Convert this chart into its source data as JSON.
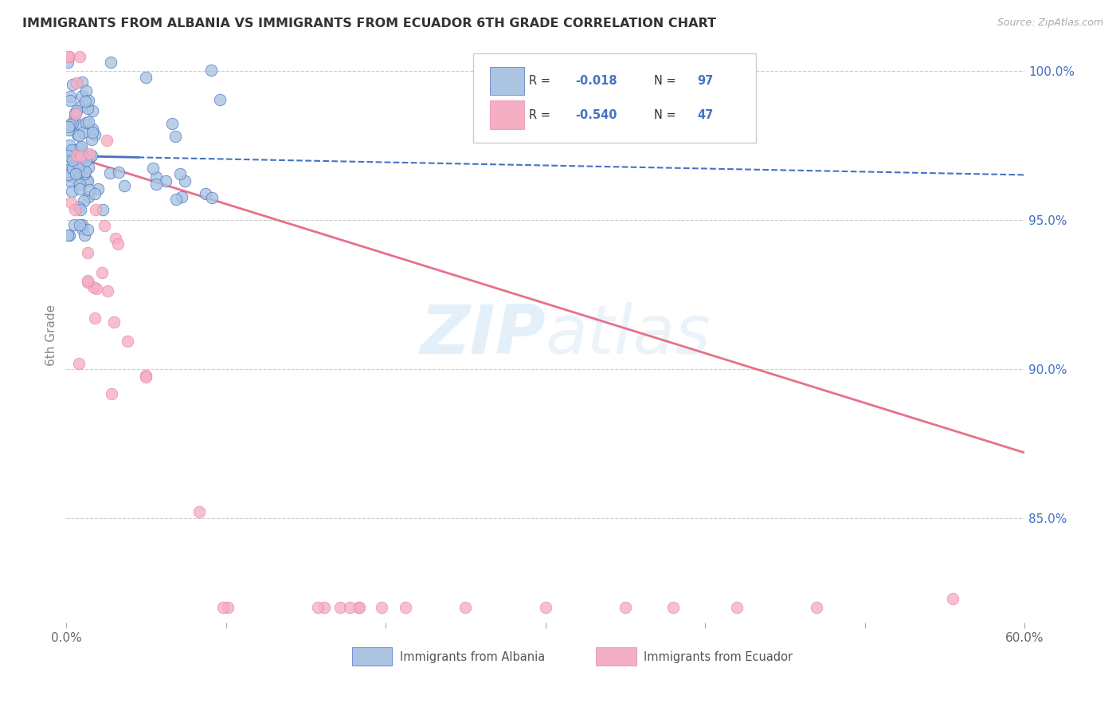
{
  "title": "IMMIGRANTS FROM ALBANIA VS IMMIGRANTS FROM ECUADOR 6TH GRADE CORRELATION CHART",
  "source": "Source: ZipAtlas.com",
  "ylabel": "6th Grade",
  "right_yticks": [
    85.0,
    90.0,
    95.0,
    100.0
  ],
  "watermark_zip": "ZIP",
  "watermark_atlas": "atlas",
  "legend_albania": "Immigrants from Albania",
  "legend_ecuador": "Immigrants from Ecuador",
  "R_albania": -0.018,
  "N_albania": 97,
  "R_ecuador": -0.54,
  "N_ecuador": 47,
  "albania_color": "#aac4e2",
  "ecuador_color": "#f5afc4",
  "albania_line_color": "#4472c4",
  "ecuador_line_color": "#e8708a",
  "xlim": [
    0.0,
    0.6
  ],
  "ylim": [
    0.815,
    1.008
  ]
}
